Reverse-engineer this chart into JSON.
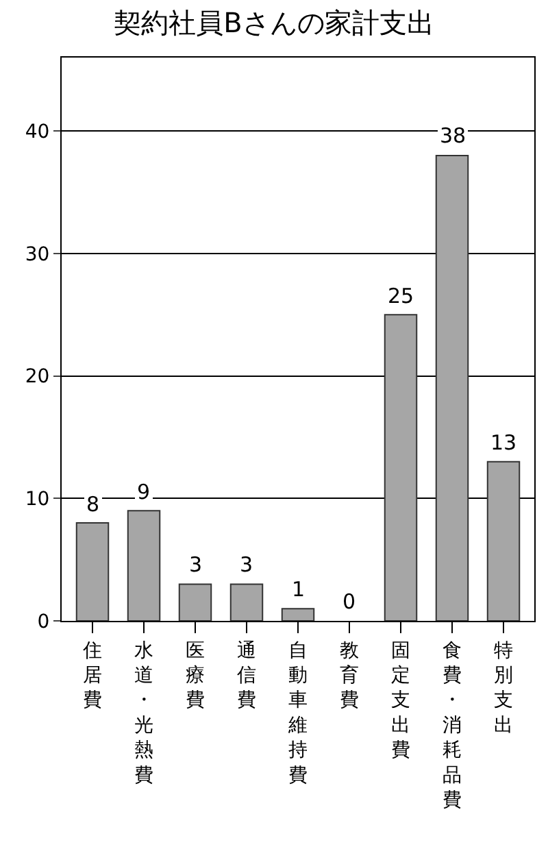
{
  "chart_data": {
    "type": "bar",
    "title": "契約社員Bさんの家計支出",
    "categories": [
      "住居費",
      "水道・光熱費",
      "医療費",
      "通信費",
      "自動車維持費",
      "教育費",
      "固定支出費",
      "食費・消耗品費",
      "特別支出"
    ],
    "values": [
      8,
      9,
      3,
      3,
      1,
      0,
      25,
      38,
      13
    ],
    "color": "#a6a6a6",
    "ylim": [
      0,
      46
    ],
    "yticks": [
      0,
      10,
      20,
      30,
      40
    ],
    "grid": "y",
    "data_labels": true,
    "legend": false
  }
}
